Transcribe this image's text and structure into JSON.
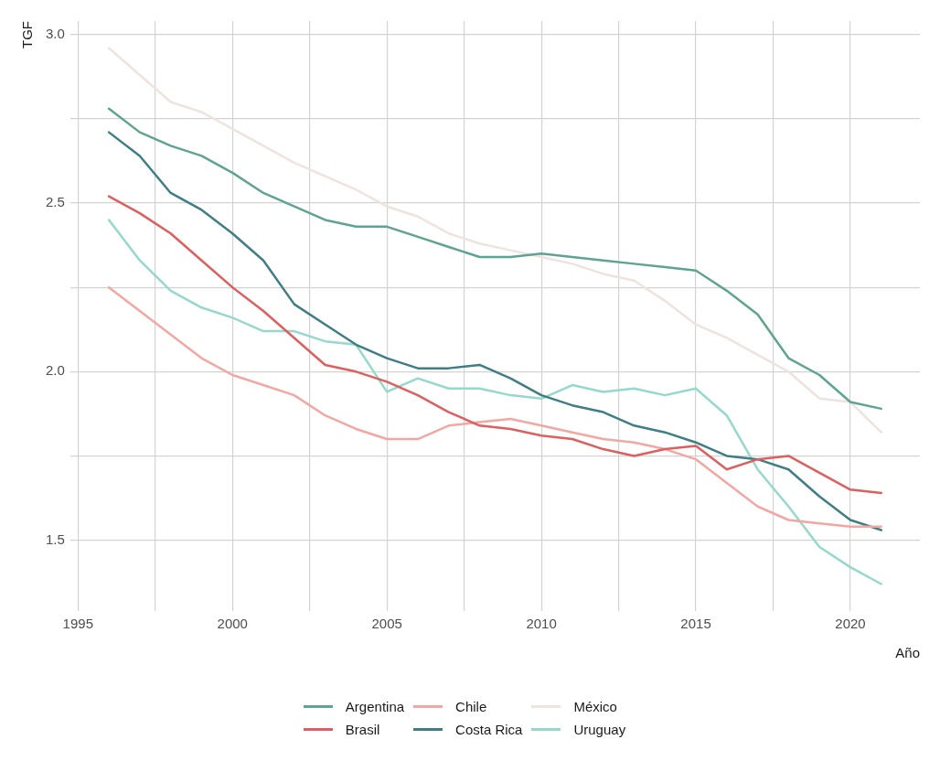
{
  "chart_data": {
    "type": "line",
    "xlabel": "Año",
    "ylabel": "TGF",
    "x": [
      1996,
      1997,
      1998,
      1999,
      2000,
      2001,
      2002,
      2003,
      2004,
      2005,
      2006,
      2007,
      2008,
      2009,
      2010,
      2011,
      2012,
      2013,
      2014,
      2015,
      2016,
      2017,
      2018,
      2019,
      2020,
      2021
    ],
    "xlim": [
      1994.75,
      2022.25
    ],
    "xticks": [
      1995,
      {
        "value": 1997.5,
        "label": null
      },
      2000,
      {
        "value": 2002.5,
        "label": null
      },
      2005,
      {
        "value": 2007.5,
        "label": null
      },
      2010,
      {
        "value": 2012.5,
        "label": null
      },
      2015,
      {
        "value": 2017.5,
        "label": null
      },
      2020
    ],
    "ylim": [
      1.29,
      3.04
    ],
    "yticks": [
      {
        "value": 1.5,
        "label": "1.5"
      },
      {
        "value": 1.75,
        "label": null
      },
      {
        "value": 2,
        "label": "2.0"
      },
      {
        "value": 2.25,
        "label": null
      },
      {
        "value": 2.5,
        "label": "2.5"
      },
      {
        "value": 2.75,
        "label": null
      },
      {
        "value": 3,
        "label": "3.0"
      }
    ],
    "grid": true,
    "legend": "bottom",
    "marker": "none",
    "line_style": "solid",
    "series": [
      {
        "name": "Argentina",
        "color": "#5fa392",
        "values": [
          2.78,
          2.71,
          2.67,
          2.64,
          2.59,
          2.53,
          2.49,
          2.45,
          2.43,
          2.43,
          2.4,
          2.37,
          2.34,
          2.34,
          2.35,
          2.34,
          2.33,
          2.32,
          2.31,
          2.3,
          2.24,
          2.17,
          2.04,
          1.99,
          1.91,
          1.89
        ]
      },
      {
        "name": "Brasil",
        "color": "#de5f5f",
        "values": [
          2.52,
          2.47,
          2.41,
          2.33,
          2.25,
          2.18,
          2.1,
          2.02,
          2.0,
          1.97,
          1.93,
          1.88,
          1.84,
          1.83,
          1.81,
          1.8,
          1.77,
          1.75,
          1.77,
          1.78,
          1.71,
          1.74,
          1.75,
          1.7,
          1.65,
          1.64
        ]
      },
      {
        "name": "Chile",
        "color": "#f2a7a3",
        "values": [
          2.25,
          2.18,
          2.11,
          2.04,
          1.99,
          1.96,
          1.93,
          1.87,
          1.83,
          1.8,
          1.8,
          1.84,
          1.85,
          1.86,
          1.84,
          1.82,
          1.8,
          1.79,
          1.77,
          1.74,
          1.67,
          1.6,
          1.56,
          1.55,
          1.54,
          1.54
        ]
      },
      {
        "name": "Costa Rica",
        "color": "#3e7e84",
        "values": [
          2.71,
          2.64,
          2.53,
          2.48,
          2.41,
          2.33,
          2.2,
          2.14,
          2.08,
          2.04,
          2.01,
          2.01,
          2.02,
          1.98,
          1.93,
          1.9,
          1.88,
          1.84,
          1.82,
          1.79,
          1.75,
          1.74,
          1.71,
          1.63,
          1.56,
          1.53
        ]
      },
      {
        "name": "México",
        "color": "#efe3e0",
        "values": [
          2.96,
          2.88,
          2.8,
          2.77,
          2.72,
          2.67,
          2.62,
          2.58,
          2.54,
          2.49,
          2.46,
          2.41,
          2.38,
          2.36,
          2.34,
          2.32,
          2.29,
          2.27,
          2.21,
          2.14,
          2.1,
          2.05,
          2.0,
          1.92,
          1.91,
          1.82
        ]
      },
      {
        "name": "Uruguay",
        "color": "#95d8cc",
        "values": [
          2.45,
          2.33,
          2.24,
          2.19,
          2.16,
          2.12,
          2.12,
          2.09,
          2.08,
          1.94,
          1.98,
          1.95,
          1.95,
          1.93,
          1.92,
          1.96,
          1.94,
          1.95,
          1.93,
          1.95,
          1.87,
          1.71,
          1.6,
          1.48,
          1.42,
          1.37
        ]
      }
    ]
  }
}
